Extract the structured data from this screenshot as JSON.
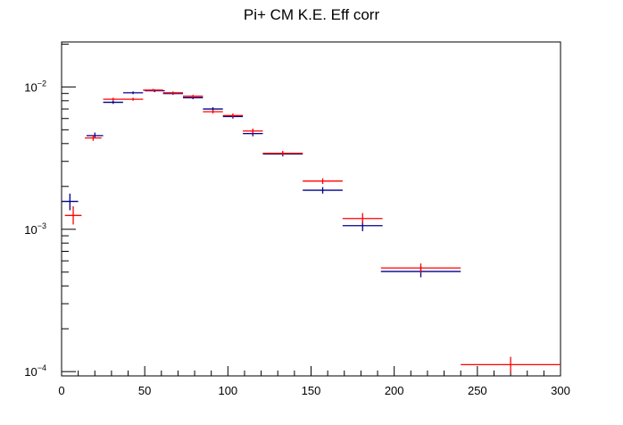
{
  "chart_data": {
    "type": "scatter",
    "title": "Pi+ CM K.E. Eff corr",
    "xlabel": "",
    "ylabel": "",
    "xlim": [
      0,
      300
    ],
    "ylim": [
      9.33e-05,
      0.0207
    ],
    "log_y": true,
    "grid": false,
    "legend": "none",
    "x_ticks": [
      0,
      50,
      100,
      150,
      200,
      250,
      300
    ],
    "x_tick_labels": [
      "0",
      "50",
      "100",
      "150",
      "200",
      "250",
      "300"
    ],
    "y_ticks": [
      0.0001,
      0.001,
      0.01
    ],
    "y_tick_labels": [
      {
        "base": "10",
        "exp": "−4"
      },
      {
        "base": "10",
        "exp": "−3"
      },
      {
        "base": "10",
        "exp": "−2"
      }
    ],
    "series": [
      {
        "color": "#00008b",
        "points": [
          {
            "x": 5,
            "xerr": 5,
            "y": 0.00157,
            "ylo": 0.00136,
            "yhi": 0.00178
          },
          {
            "x": 20,
            "xerr": 5,
            "y": 0.00455,
            "ylo": 0.00435,
            "yhi": 0.00478
          },
          {
            "x": 31,
            "xerr": 6,
            "y": 0.0078,
            "ylo": 0.0076,
            "yhi": 0.008
          },
          {
            "x": 43,
            "xerr": 6,
            "y": 0.0091,
            "ylo": 0.0089,
            "yhi": 0.0093
          },
          {
            "x": 56,
            "xerr": 6,
            "y": 0.0094,
            "ylo": 0.0092,
            "yhi": 0.0096
          },
          {
            "x": 67,
            "xerr": 6,
            "y": 0.009,
            "ylo": 0.0088,
            "yhi": 0.0092
          },
          {
            "x": 79,
            "xerr": 6,
            "y": 0.0084,
            "ylo": 0.0082,
            "yhi": 0.0086
          },
          {
            "x": 91,
            "xerr": 6,
            "y": 0.007,
            "ylo": 0.0068,
            "yhi": 0.0072
          },
          {
            "x": 103,
            "xerr": 6,
            "y": 0.0062,
            "ylo": 0.006,
            "yhi": 0.0064
          },
          {
            "x": 115,
            "xerr": 6,
            "y": 0.0047,
            "ylo": 0.0045,
            "yhi": 0.0049
          },
          {
            "x": 133,
            "xerr": 12,
            "y": 0.00338,
            "ylo": 0.00325,
            "yhi": 0.00352
          },
          {
            "x": 157,
            "xerr": 12,
            "y": 0.00188,
            "ylo": 0.00178,
            "yhi": 0.00198
          },
          {
            "x": 181,
            "xerr": 12,
            "y": 0.00106,
            "ylo": 0.00097,
            "yhi": 0.00115
          },
          {
            "x": 216,
            "xerr": 24,
            "y": 0.000505,
            "ylo": 0.00046,
            "yhi": 0.00055
          }
        ]
      },
      {
        "color": "#ff0000",
        "points": [
          {
            "x": 7,
            "xerr": 5,
            "y": 0.00125,
            "ylo": 0.00108,
            "yhi": 0.00145
          },
          {
            "x": 19,
            "xerr": 5,
            "y": 0.00438,
            "ylo": 0.00418,
            "yhi": 0.00458
          },
          {
            "x": 31,
            "xerr": 6,
            "y": 0.0082,
            "ylo": 0.008,
            "yhi": 0.0084
          },
          {
            "x": 43,
            "xerr": 6,
            "y": 0.0082,
            "ylo": 0.008,
            "yhi": 0.0084
          },
          {
            "x": 55,
            "xerr": 6,
            "y": 0.0095,
            "ylo": 0.0093,
            "yhi": 0.0097
          },
          {
            "x": 67,
            "xerr": 6,
            "y": 0.0091,
            "ylo": 0.0089,
            "yhi": 0.0093
          },
          {
            "x": 79,
            "xerr": 6,
            "y": 0.0086,
            "ylo": 0.0084,
            "yhi": 0.0088
          },
          {
            "x": 91,
            "xerr": 6,
            "y": 0.0067,
            "ylo": 0.0065,
            "yhi": 0.0069
          },
          {
            "x": 103,
            "xerr": 6,
            "y": 0.0063,
            "ylo": 0.0061,
            "yhi": 0.0065
          },
          {
            "x": 115,
            "xerr": 6,
            "y": 0.0049,
            "ylo": 0.0047,
            "yhi": 0.0051
          },
          {
            "x": 133,
            "xerr": 12,
            "y": 0.00342,
            "ylo": 0.0033,
            "yhi": 0.00355
          },
          {
            "x": 157,
            "xerr": 12,
            "y": 0.00218,
            "ylo": 0.00208,
            "yhi": 0.00228
          },
          {
            "x": 181,
            "xerr": 12,
            "y": 0.00119,
            "ylo": 0.0011,
            "yhi": 0.0013
          },
          {
            "x": 216,
            "xerr": 24,
            "y": 0.000535,
            "ylo": 0.000495,
            "yhi": 0.000575
          },
          {
            "x": 270,
            "xerr": 30,
            "y": 0.000112,
            "ylo": 9.85e-05,
            "yhi": 0.000127
          }
        ]
      }
    ]
  }
}
